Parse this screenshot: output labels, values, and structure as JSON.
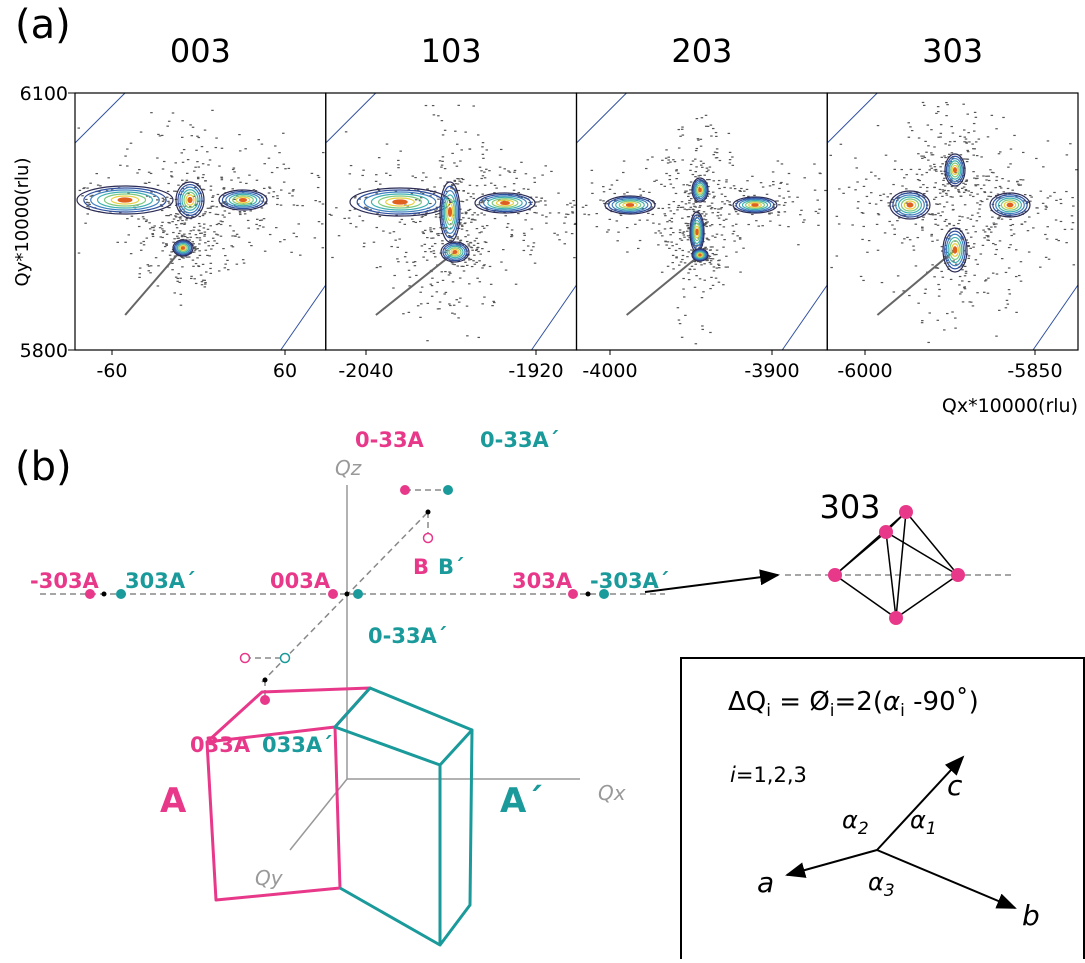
{
  "panel_a": {
    "label": "(a)",
    "y_label": "Qy*10000(rlu)",
    "x_label": "Qx*10000(rlu)",
    "yticks": [
      6100,
      5800
    ],
    "maps": [
      {
        "title": "003",
        "xticks": [
          -60,
          60
        ]
      },
      {
        "title": "103",
        "xticks": [
          -2040,
          -1920
        ]
      },
      {
        "title": "203",
        "xticks": [
          -4000,
          -3900
        ]
      },
      {
        "title": "303",
        "xticks": [
          -6000,
          -5850
        ]
      }
    ]
  },
  "panel_b": {
    "label": "(b)",
    "axes": {
      "qz": "Qz",
      "qx": "Qx",
      "qy": "Qy"
    },
    "points": {
      "top_a": "0-33A",
      "top_a2": "0-33A´",
      "left_a": "-303A",
      "left_a2": "303A´",
      "center_a": "003A",
      "b": "B",
      "b2": "B´",
      "right_a": "303A",
      "right_a2": "-303A´",
      "center_a2": "0-33A´",
      "bottom_a": "033A",
      "bottom_a2": "033A´"
    },
    "cells": {
      "a": "A",
      "a2": "A´"
    },
    "inset_title": "303",
    "formula": [
      "ΔQ",
      "i",
      " = Ø",
      "i",
      "=2(",
      "α",
      "i",
      " -90˚)"
    ],
    "index": [
      "i",
      "=1,2,3"
    ],
    "vectors": {
      "a": "a",
      "b": "b",
      "c": "c"
    },
    "angles": [
      {
        "symbol": "α",
        "sub": "1"
      },
      {
        "symbol": "α",
        "sub": "2"
      },
      {
        "symbol": "α",
        "sub": "3"
      }
    ]
  }
}
